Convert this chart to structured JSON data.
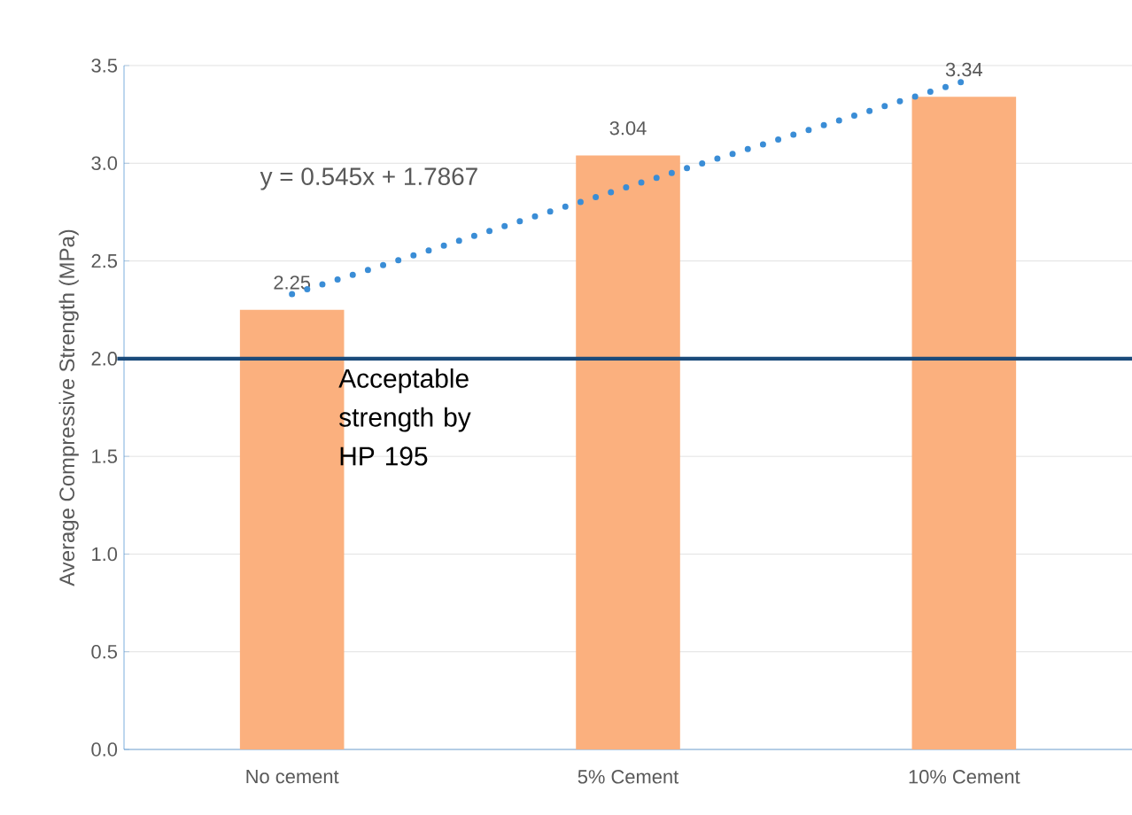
{
  "chart_data": {
    "type": "bar",
    "ylabel": "Average Compressive Strength (MPa)",
    "categories": [
      "No cement",
      "5% Cement",
      "10% Cement"
    ],
    "series": [
      {
        "color": "#fbb07e",
        "values": [
          2.25,
          3.04,
          3.34
        ],
        "value_labels": [
          "2.25",
          "3.04",
          "3.34"
        ]
      },
      {
        "type": "line",
        "color": "#3a8dd6",
        "values": [
          2.33,
          2.88,
          3.42
        ],
        "line_style": "dotted",
        "marker": "none"
      }
    ],
    "annotations": [
      "y = 0.545x + 1.7867"
    ],
    "ref_lines": [
      {
        "axis": "y",
        "value": 2.0,
        "label": "Acceptable strength by HP 195",
        "color": "#1a4a7a"
      }
    ],
    "ylim": [
      0,
      3.5
    ],
    "yticks": [
      {
        "value": 0,
        "label": "0.0"
      },
      {
        "value": 0.5,
        "label": "0.5"
      },
      {
        "value": 1,
        "label": "1.0"
      },
      {
        "value": 1.5,
        "label": "1.5"
      },
      {
        "value": 2,
        "label": "2.0"
      },
      {
        "value": 2.5,
        "label": "2.5"
      },
      {
        "value": 3,
        "label": "3.0"
      },
      {
        "value": 3.5,
        "label": "3.5"
      }
    ],
    "grid": "y"
  }
}
